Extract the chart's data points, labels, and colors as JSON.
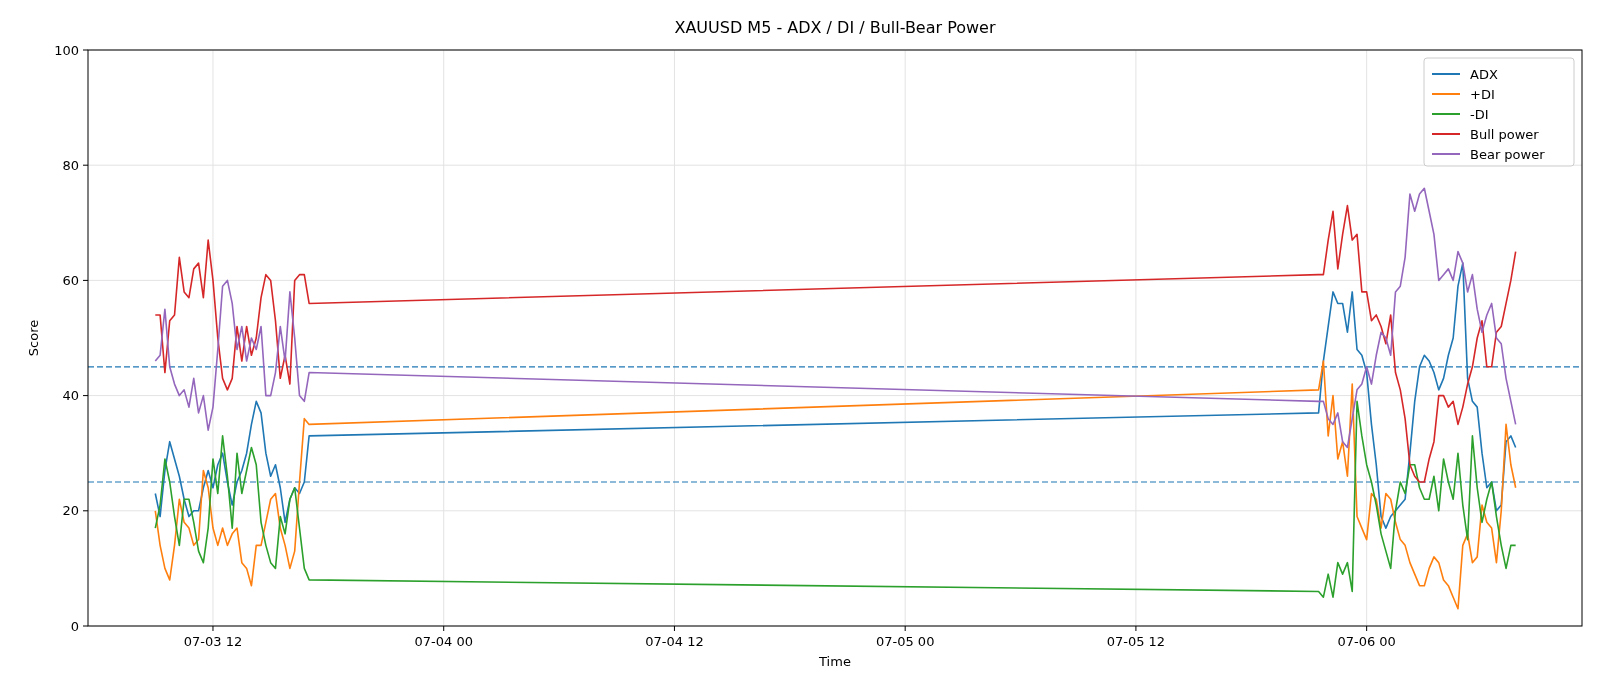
{
  "chart_data": {
    "type": "line",
    "title": "XAUUSD M5 - ADX / DI / Bull-Bear Power",
    "xlabel": "Time",
    "ylabel": "Score",
    "x": [
      "--07-03T09:00",
      "--07-03T09:15",
      "--07-03T09:30",
      "--07-03T09:45",
      "--07-03T10:00",
      "--07-03T10:15",
      "--07-03T10:30",
      "--07-03T10:45",
      "--07-03T11:00",
      "--07-03T11:15",
      "--07-03T11:30",
      "--07-03T11:45",
      "--07-03T12:00",
      "--07-03T12:15",
      "--07-03T12:30",
      "--07-03T12:45",
      "--07-03T13:00",
      "--07-03T13:15",
      "--07-03T13:30",
      "--07-03T13:45",
      "--07-03T14:00",
      "--07-03T14:15",
      "--07-03T14:30",
      "--07-03T14:45",
      "--07-03T15:00",
      "--07-03T15:15",
      "--07-03T15:30",
      "--07-03T15:45",
      "--07-03T16:00",
      "--07-03T16:15",
      "--07-03T16:30",
      "--07-03T16:45",
      "--07-03T17:00",
      "--07-05T21:30",
      "--07-05T21:45",
      "--07-05T22:00",
      "--07-05T22:15",
      "--07-05T22:30",
      "--07-05T22:45",
      "--07-05T23:00",
      "--07-05T23:15",
      "--07-05T23:30",
      "--07-05T23:45",
      "--07-06T00:00",
      "--07-06T00:15",
      "--07-06T00:30",
      "--07-06T00:45",
      "--07-06T01:00",
      "--07-06T01:15",
      "--07-06T01:30",
      "--07-06T01:45",
      "--07-06T02:00",
      "--07-06T02:15",
      "--07-06T02:30",
      "--07-06T02:45",
      "--07-06T03:00",
      "--07-06T03:15",
      "--07-06T03:30",
      "--07-06T03:45",
      "--07-06T04:00",
      "--07-06T04:15",
      "--07-06T04:30",
      "--07-06T04:45",
      "--07-06T05:00",
      "--07-06T05:15",
      "--07-06T05:30",
      "--07-06T05:45",
      "--07-06T06:00",
      "--07-06T06:15",
      "--07-06T06:30",
      "--07-06T06:45",
      "--07-06T07:00",
      "--07-06T07:15",
      "--07-06T07:30",
      "--07-06T07:45"
    ],
    "series": [
      {
        "name": "ADX",
        "color": "#1f77b4",
        "values": [
          23,
          19,
          27,
          32,
          29,
          26,
          22,
          19,
          20,
          20,
          24,
          27,
          24,
          28,
          30,
          25,
          21,
          25,
          27,
          30,
          35,
          39,
          37,
          30,
          26,
          28,
          24,
          18,
          22,
          24,
          23,
          25,
          33,
          37,
          46,
          52,
          58,
          56,
          56,
          51,
          58,
          48,
          47,
          44,
          35,
          28,
          19,
          17,
          19,
          20,
          21,
          22,
          30,
          39,
          45,
          47,
          46,
          44,
          41,
          43,
          47,
          50,
          59,
          63,
          43,
          39,
          38,
          30,
          24,
          25,
          20,
          21,
          32,
          33,
          31
        ]
      },
      {
        "name": "+DI",
        "color": "#ff7f0e",
        "values": [
          20,
          14,
          10,
          8,
          14,
          22,
          18,
          17,
          14,
          15,
          27,
          24,
          17,
          14,
          17,
          14,
          16,
          17,
          11,
          10,
          7,
          14,
          14,
          18,
          22,
          23,
          17,
          14,
          10,
          13,
          25,
          36,
          35,
          41,
          46,
          33,
          40,
          29,
          32,
          26,
          42,
          19,
          17,
          15,
          23,
          22,
          17,
          23,
          22,
          18,
          15,
          14,
          11,
          9,
          7,
          7,
          10,
          12,
          11,
          8,
          7,
          5,
          3,
          14,
          16,
          11,
          12,
          21,
          18,
          17,
          11,
          20,
          35,
          28,
          24
        ]
      },
      {
        "name": "-DI",
        "color": "#2ca02c",
        "values": [
          17,
          21,
          29,
          25,
          19,
          14,
          22,
          22,
          18,
          13,
          11,
          17,
          29,
          23,
          33,
          26,
          17,
          30,
          23,
          27,
          31,
          28,
          18,
          14,
          11,
          10,
          19,
          16,
          22,
          24,
          17,
          10,
          8,
          6,
          5,
          9,
          5,
          11,
          9,
          11,
          6,
          39,
          33,
          28,
          25,
          21,
          16,
          13,
          10,
          20,
          25,
          23,
          28,
          28,
          24,
          22,
          22,
          26,
          20,
          29,
          25,
          22,
          30,
          21,
          15,
          33,
          24,
          18,
          22,
          25,
          19,
          14,
          10,
          14,
          14
        ]
      },
      {
        "name": "Bull power",
        "color": "#d62728",
        "values": [
          54,
          54,
          44,
          53,
          54,
          64,
          58,
          57,
          62,
          63,
          57,
          67,
          60,
          50,
          43,
          41,
          43,
          52,
          46,
          52,
          47,
          50,
          57,
          61,
          60,
          53,
          43,
          47,
          42,
          60,
          61,
          61,
          56,
          61,
          61,
          67,
          72,
          62,
          68,
          73,
          67,
          68,
          58,
          58,
          53,
          54,
          52,
          49,
          54,
          44,
          41,
          36,
          28,
          26,
          25,
          25,
          29,
          32,
          40,
          40,
          38,
          39,
          35,
          38,
          42,
          45,
          50,
          53,
          45,
          45,
          51,
          52,
          56,
          60,
          65
        ]
      },
      {
        "name": "Bear power",
        "color": "#9467bd",
        "values": [
          46,
          47,
          55,
          45,
          42,
          40,
          41,
          38,
          43,
          37,
          40,
          34,
          38,
          48,
          59,
          60,
          56,
          48,
          52,
          46,
          50,
          48,
          52,
          40,
          40,
          44,
          52,
          46,
          58,
          50,
          40,
          39,
          44,
          39,
          39,
          36,
          35,
          37,
          32,
          31,
          36,
          41,
          42,
          45,
          42,
          47,
          51,
          50,
          47,
          58,
          59,
          64,
          75,
          72,
          75,
          76,
          72,
          68,
          60,
          61,
          62,
          60,
          65,
          63,
          58,
          61,
          55,
          51,
          54,
          56,
          50,
          49,
          43,
          39,
          35
        ]
      }
    ],
    "xlim": [
      "--07-03T05:30",
      "--07-06T11:12"
    ],
    "xticks": [
      {
        "value": "--07-03T12:00",
        "label": "07-03 12"
      },
      {
        "value": "--07-04T00:00",
        "label": "07-04 00"
      },
      {
        "value": "--07-04T12:00",
        "label": "07-04 12"
      },
      {
        "value": "--07-05T00:00",
        "label": "07-05 00"
      },
      {
        "value": "--07-05T12:00",
        "label": "07-05 12"
      },
      {
        "value": "--07-06T00:00",
        "label": "07-06 00"
      }
    ],
    "ylim": [
      0,
      100
    ],
    "yticks": [
      0,
      20,
      40,
      60,
      80,
      100
    ],
    "ref_lines": [
      {
        "axis": "y",
        "value": 45,
        "color": "#1f77b4",
        "line_style": "dashed"
      },
      {
        "axis": "y",
        "value": 25,
        "color": "#1f77b4",
        "line_style": "dashed"
      }
    ],
    "grid": true,
    "legend": "top right"
  }
}
